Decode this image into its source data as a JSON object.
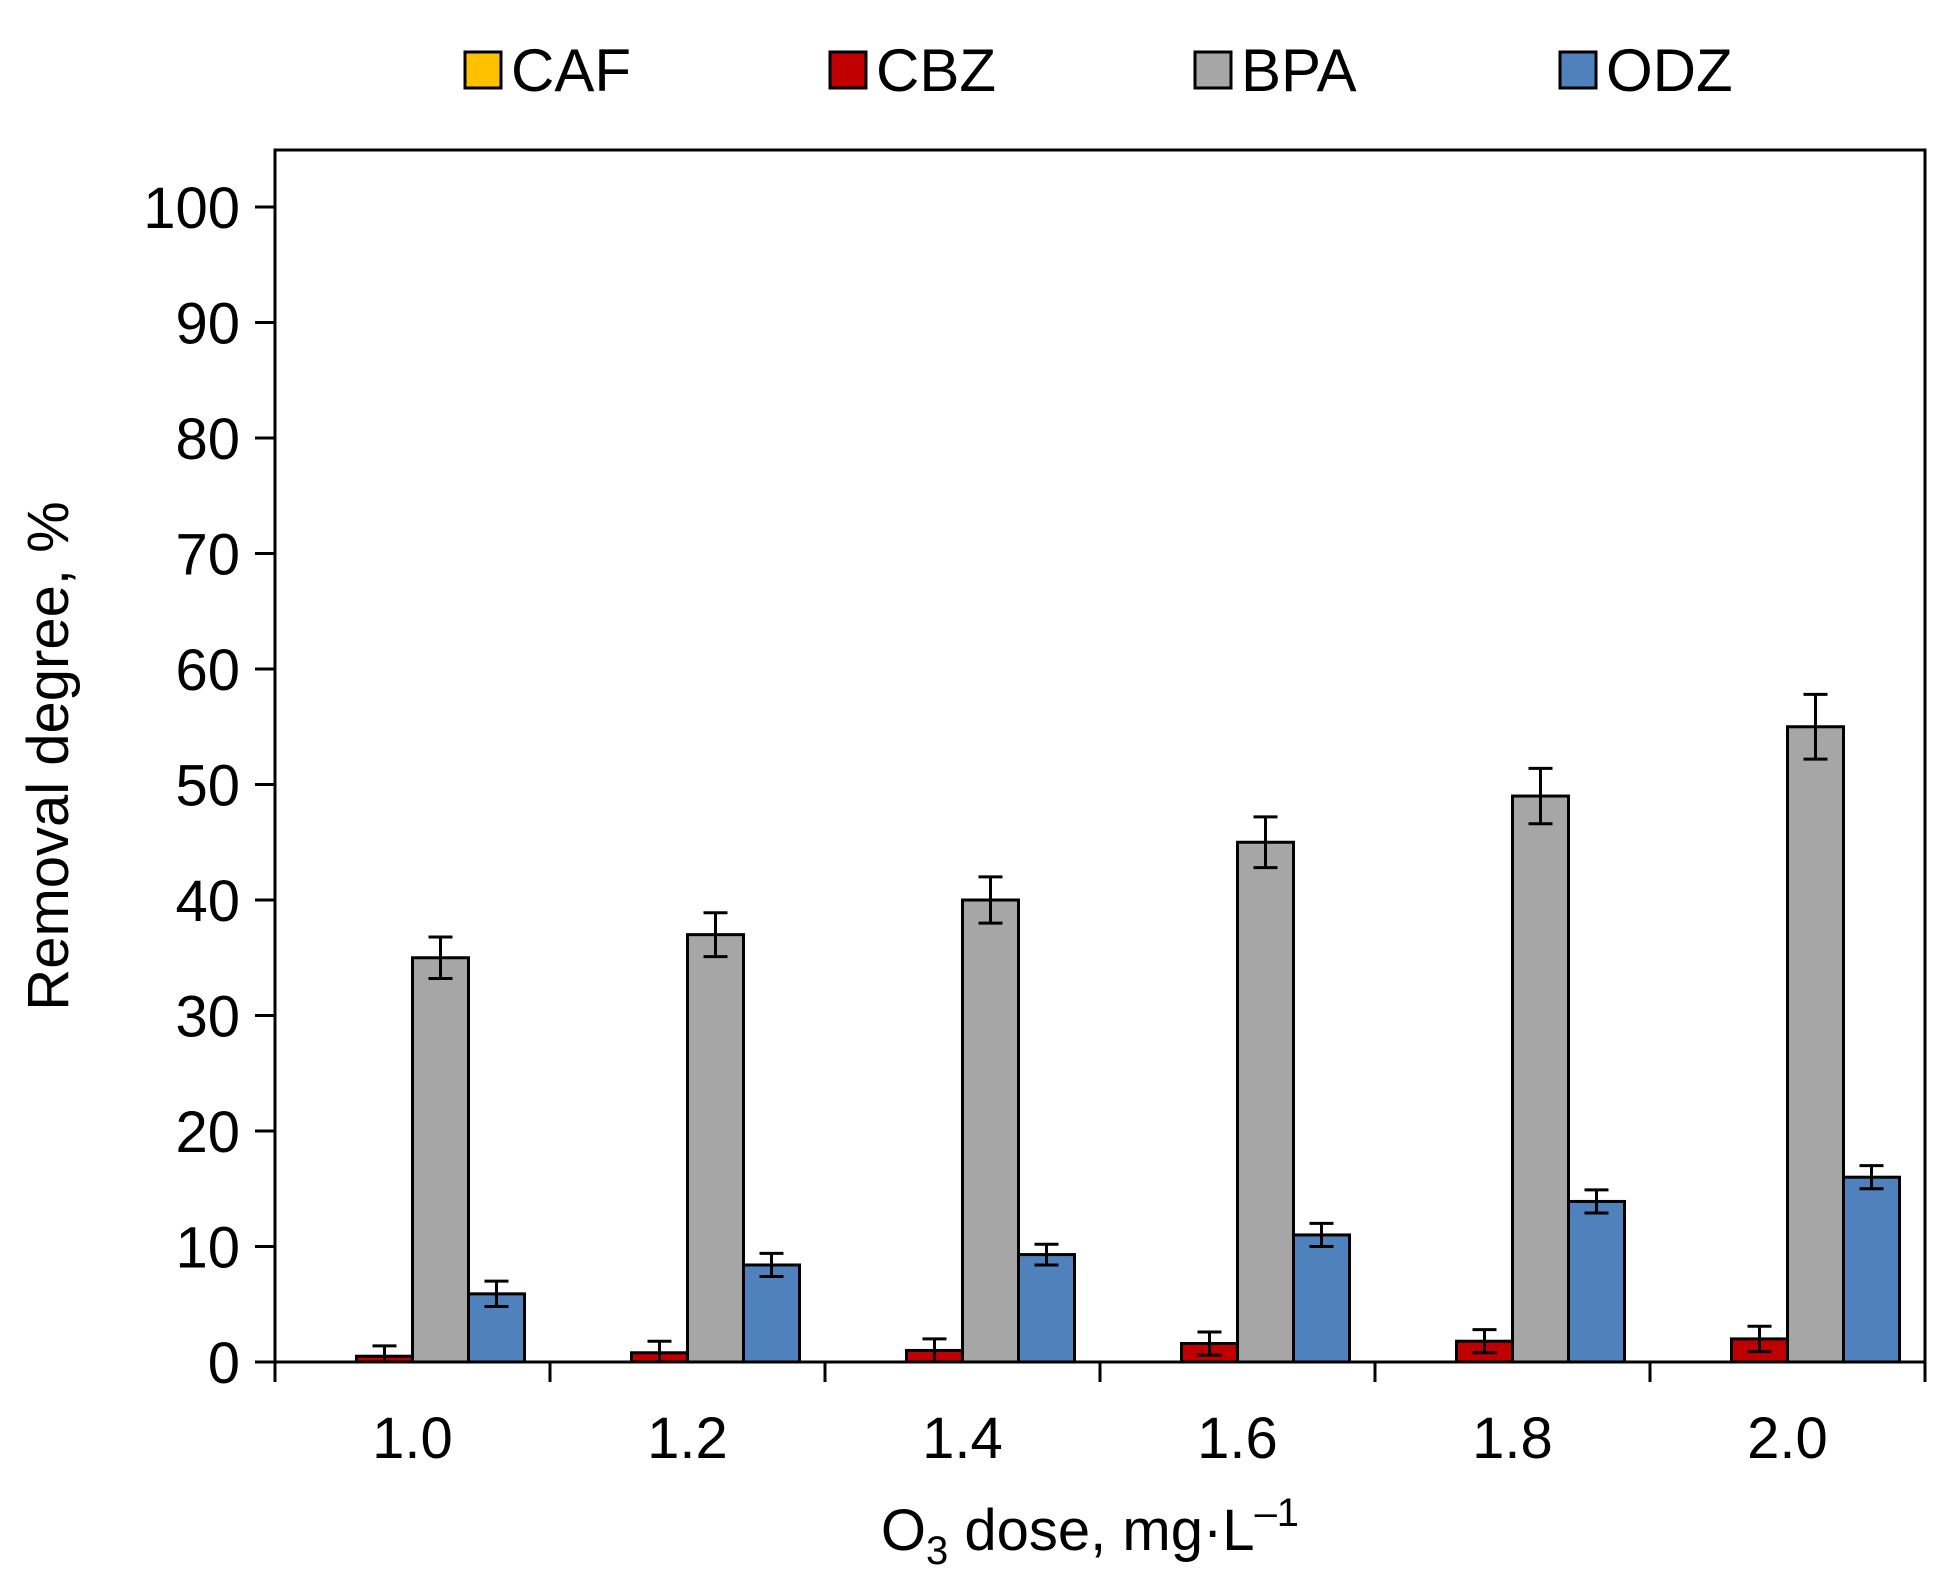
{
  "chart_data": {
    "type": "bar",
    "title": "",
    "xlabel": {
      "main": "O",
      "subscript": "3",
      "rest": " dose, mg·L",
      "superscript": "–1"
    },
    "ylabel": "Removal degree, %",
    "ylim": [
      0,
      100
    ],
    "yticks": [
      0,
      10,
      20,
      30,
      40,
      50,
      60,
      70,
      80,
      90,
      100
    ],
    "ytick_labels": [
      "0",
      "10",
      "20",
      "30",
      "40",
      "50",
      "60",
      "70",
      "80",
      "90",
      "100"
    ],
    "categories": [
      "1.0",
      "1.2",
      "1.4",
      "1.6",
      "1.8",
      "2.0"
    ],
    "legend_position": "top",
    "grid": false,
    "series": [
      {
        "name": "CAF",
        "color": "#FFC000",
        "values": [
          0,
          0,
          0,
          0,
          0,
          0
        ],
        "errors": [
          0,
          0,
          0,
          0,
          0,
          0
        ]
      },
      {
        "name": "CBZ",
        "color": "#C00000",
        "values": [
          0.5,
          0.8,
          1.0,
          1.6,
          1.8,
          2.0
        ],
        "errors": [
          0.9,
          1.0,
          1.0,
          1.0,
          1.0,
          1.1
        ]
      },
      {
        "name": "BPA",
        "color": "#A6A6A6",
        "values": [
          35,
          37,
          40,
          45,
          49,
          55
        ],
        "errors": [
          1.8,
          1.9,
          2.0,
          2.2,
          2.4,
          2.8
        ]
      },
      {
        "name": "ODZ",
        "color": "#4F81BD",
        "values": [
          5.9,
          8.4,
          9.3,
          11.0,
          13.9,
          16.0
        ],
        "errors": [
          1.1,
          1.0,
          0.9,
          1.0,
          1.0,
          1.0
        ]
      }
    ]
  }
}
